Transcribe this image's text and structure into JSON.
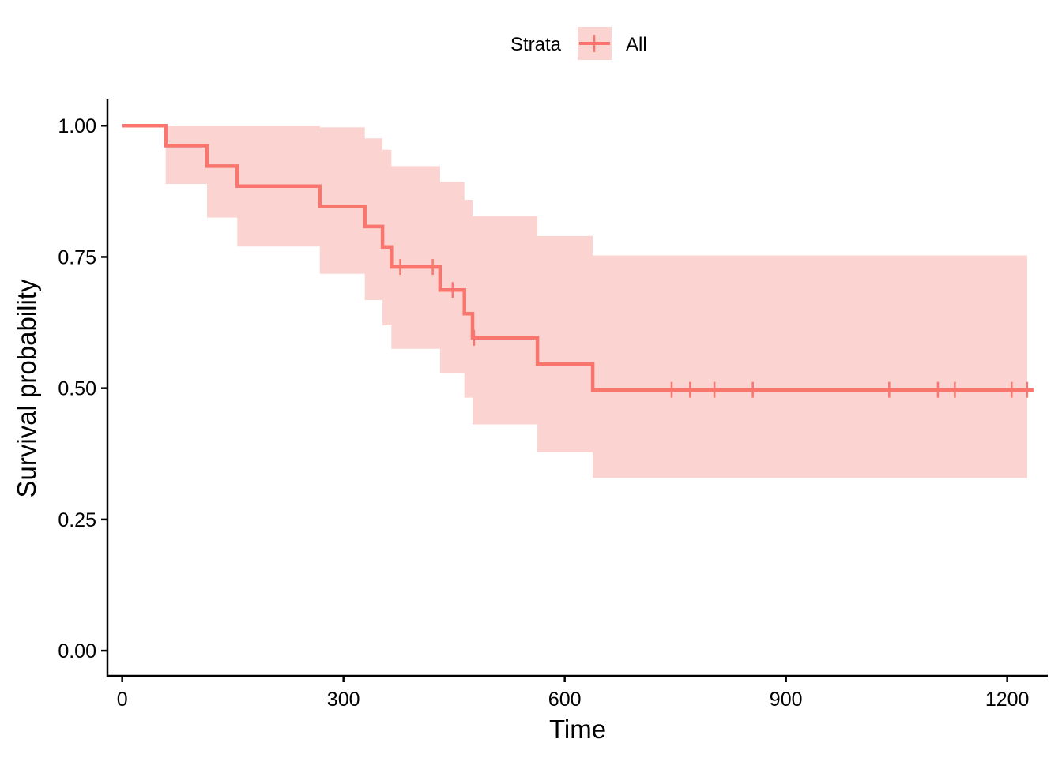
{
  "chart_data": {
    "type": "line",
    "subtype": "kaplan-meier",
    "title": "",
    "xlabel": "Time",
    "ylabel": "Survival probability",
    "xlim": [
      -20,
      1255
    ],
    "ylim": [
      -0.048,
      1.05
    ],
    "x_ticks": [
      0,
      300,
      600,
      900,
      1200
    ],
    "y_ticks": [
      0.0,
      0.25,
      0.5,
      0.75,
      1.0
    ],
    "y_tick_labels": [
      "0.00",
      "0.25",
      "0.50",
      "0.75",
      "1.00"
    ],
    "x_tick_labels": [
      "0",
      "300",
      "600",
      "900",
      "1200"
    ],
    "grid": false,
    "legend": {
      "title": "Strata",
      "position": "top",
      "entries": [
        "All"
      ]
    },
    "colors": {
      "line": "#F8766D",
      "band": "#FBD3D0",
      "legend_key_bg": "#FBD3D0"
    },
    "series": [
      {
        "name": "All",
        "steps": [
          {
            "x": 0,
            "y": 1.0,
            "lower": 1.0,
            "upper": 1.0
          },
          {
            "x": 59,
            "y": 0.962,
            "lower": 0.889,
            "upper": 1.0
          },
          {
            "x": 115,
            "y": 0.923,
            "lower": 0.825,
            "upper": 1.0
          },
          {
            "x": 156,
            "y": 0.885,
            "lower": 0.77,
            "upper": 1.0
          },
          {
            "x": 268,
            "y": 0.846,
            "lower": 0.718,
            "upper": 0.997
          },
          {
            "x": 329,
            "y": 0.808,
            "lower": 0.668,
            "upper": 0.976
          },
          {
            "x": 353,
            "y": 0.769,
            "lower": 0.62,
            "upper": 0.954
          },
          {
            "x": 365,
            "y": 0.731,
            "lower": 0.575,
            "upper": 0.923
          },
          {
            "x": 431,
            "y": 0.687,
            "lower": 0.529,
            "upper": 0.893
          },
          {
            "x": 464,
            "y": 0.642,
            "lower": 0.482,
            "upper": 0.859
          },
          {
            "x": 475,
            "y": 0.596,
            "lower": 0.431,
            "upper": 0.828
          },
          {
            "x": 563,
            "y": 0.546,
            "lower": 0.378,
            "upper": 0.79
          },
          {
            "x": 638,
            "y": 0.497,
            "lower": 0.329,
            "upper": 0.753
          }
        ],
        "end_x": 1227,
        "censor_times": [
          377,
          421,
          448,
          477,
          745,
          770,
          803,
          855,
          1040,
          1106,
          1129,
          1206,
          1227
        ]
      }
    ]
  }
}
